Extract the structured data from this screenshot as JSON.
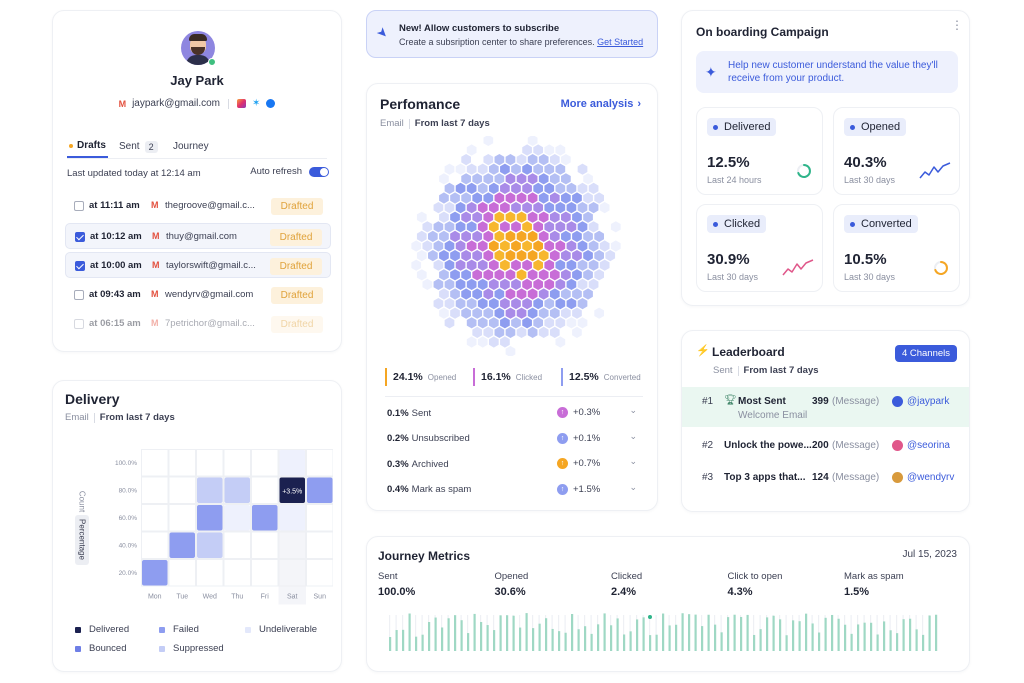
{
  "profile": {
    "name": "Jay Park",
    "email": "jaypark@gmail.com",
    "tabs": [
      {
        "label": "Drafts"
      },
      {
        "label": "Sent",
        "count": "2"
      },
      {
        "label": "Journey"
      }
    ],
    "last_updated": "Last updated today at 12:14 am",
    "auto_refresh": "Auto refresh",
    "drafts": [
      {
        "time": "at 11:11 am",
        "email": "thegroove@gmail.c...",
        "status": "Drafted",
        "checked": false
      },
      {
        "time": "at 10:12 am",
        "email": "thuy@gmail.com",
        "status": "Drafted",
        "checked": true
      },
      {
        "time": "at 10:00 am",
        "email": "taylorswift@gmail.c...",
        "status": "Drafted",
        "checked": true
      },
      {
        "time": "at 09:43 am",
        "email": "wendyrv@gmail.com",
        "status": "Drafted",
        "checked": false
      },
      {
        "time": "at 06:15 am",
        "email": "7petrichor@gmail.c...",
        "status": "Drafted",
        "checked": false
      }
    ]
  },
  "banner": {
    "title": "New! Allow customers to subscribe",
    "text": "Create a subsription center to share preferences.",
    "link": "Get Started"
  },
  "performance": {
    "title": "Perfomance",
    "more": "More analysis",
    "filter_label": "Email",
    "filter_value": "From last 7 days",
    "summary": [
      {
        "value": "24.1%",
        "label": "Opened",
        "color": "#f5a623"
      },
      {
        "value": "16.1%",
        "label": "Clicked",
        "color": "#c86dd7"
      },
      {
        "value": "12.5%",
        "label": "Converted",
        "color": "#8e9df0"
      }
    ],
    "metrics": [
      {
        "value": "0.1%",
        "label": "Sent",
        "change": "+0.3%",
        "color": "#c86dd7"
      },
      {
        "value": "0.2%",
        "label": "Unsubscribed",
        "change": "+0.1%",
        "color": "#8e9df0"
      },
      {
        "value": "0.3%",
        "label": "Archived",
        "change": "+0.7%",
        "color": "#f5a623"
      },
      {
        "value": "0.4%",
        "label": "Mark as spam",
        "change": "+1.5%",
        "color": "#8e9df0"
      }
    ]
  },
  "delivery": {
    "title": "Delivery",
    "filter_label": "Email",
    "filter_value": "From last 7 days",
    "y_toggle": [
      "Count",
      "Percentage"
    ],
    "tooltip": "+3.5%",
    "legend": [
      {
        "label": "Delivered",
        "color": "#1b2150"
      },
      {
        "label": "Failed",
        "color": "#8e9df0"
      },
      {
        "label": "Undeliverable",
        "color": "#e3e8fb"
      },
      {
        "label": "Bounced",
        "color": "#6f7fe6"
      },
      {
        "label": "Suppressed",
        "color": "#c4cdf6"
      }
    ]
  },
  "chart_data": {
    "type": "heatmap",
    "x": [
      "Mon",
      "Tue",
      "Wed",
      "Thu",
      "Fri",
      "Sat",
      "Sun"
    ],
    "y": [
      "100.0%",
      "80.0%",
      "60.0%",
      "40.0%",
      "20.0%"
    ],
    "cells": [
      {
        "x": "Sat",
        "y": "100.0%",
        "level": 1
      },
      {
        "x": "Wed",
        "y": "80.0%",
        "level": 2
      },
      {
        "x": "Thu",
        "y": "80.0%",
        "level": 2
      },
      {
        "x": "Sat",
        "y": "80.0%",
        "level": 5
      },
      {
        "x": "Sun",
        "y": "80.0%",
        "level": 3
      },
      {
        "x": "Wed",
        "y": "60.0%",
        "level": 3
      },
      {
        "x": "Thu",
        "y": "60.0%",
        "level": 1
      },
      {
        "x": "Fri",
        "y": "60.0%",
        "level": 3
      },
      {
        "x": "Sat",
        "y": "60.0%",
        "level": 1
      },
      {
        "x": "Tue",
        "y": "40.0%",
        "level": 3
      },
      {
        "x": "Wed",
        "y": "40.0%",
        "level": 2
      },
      {
        "x": "Mon",
        "y": "20.0%",
        "level": 3
      }
    ],
    "highlight_column": "Sat"
  },
  "journey": {
    "title": "Journey Metrics",
    "date": "Jul 15, 2023",
    "stats": [
      {
        "label": "Sent",
        "value": "100.0%"
      },
      {
        "label": "Opened",
        "value": "30.6%"
      },
      {
        "label": "Clicked",
        "value": "2.4%"
      },
      {
        "label": "Click to open",
        "value": "4.3%"
      },
      {
        "label": "Mark as spam",
        "value": "1.5%"
      }
    ]
  },
  "campaign": {
    "title": "On boarding Campaign",
    "hint": "Help new customer understand the value they'll receive from your product.",
    "stats": [
      {
        "label": "Delivered",
        "value": "12.5%",
        "period": "Last 24 hours",
        "icon": "ring-green-icon"
      },
      {
        "label": "Opened",
        "value": "40.3%",
        "period": "Last 30 days",
        "icon": "sparkline-blue-icon"
      },
      {
        "label": "Clicked",
        "value": "30.9%",
        "period": "Last 30 days",
        "icon": "sparkline-pink-icon"
      },
      {
        "label": "Converted",
        "value": "10.5%",
        "period": "Last 30 days",
        "icon": "ring-orange-icon"
      }
    ]
  },
  "leaderboard": {
    "title": "Leaderboard",
    "channels": "4 Channels",
    "filter_label": "Sent",
    "filter_value": "From last 7 days",
    "rows": [
      {
        "rank": "#1",
        "name": "Most Sent",
        "sub": "Welcome Email",
        "count": "399",
        "unit": "(Message)",
        "user": "@jaypark",
        "avatar": "#3b5bdb"
      },
      {
        "rank": "#2",
        "name": "Unlock the powe...",
        "count": "200",
        "unit": "(Message)",
        "user": "@seorina",
        "avatar": "#e0578a"
      },
      {
        "rank": "#3",
        "name": "Top 3 apps that...",
        "count": "124",
        "unit": "(Message)",
        "user": "@wendyrv",
        "avatar": "#d89a3c"
      }
    ]
  }
}
